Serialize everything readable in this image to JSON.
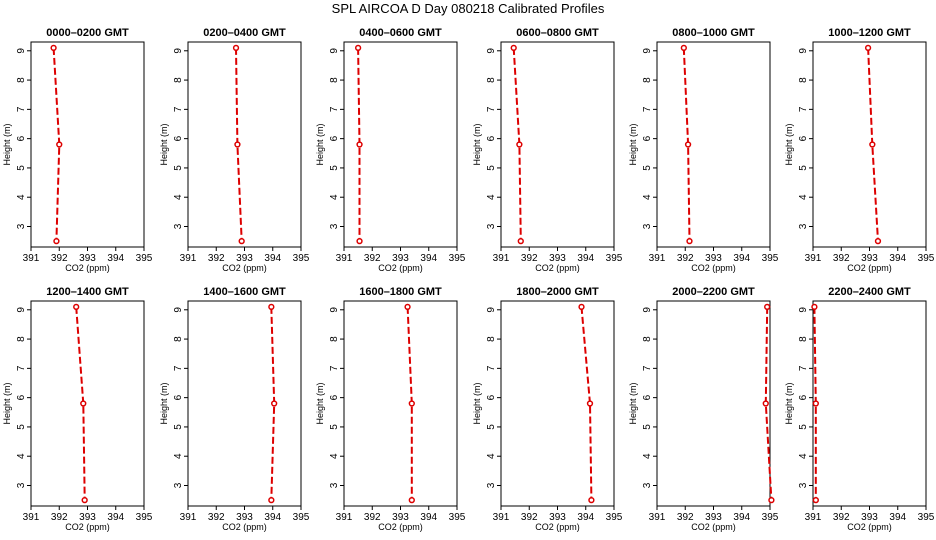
{
  "title": "SPL AIRCOA D  Day 080218  Calibrated Profiles",
  "chart_data": [
    {
      "type": "line",
      "title": "0000–0200 GMT",
      "xlabel": "CO2 (ppm)",
      "ylabel": "Height (m)",
      "xlim": [
        391,
        395
      ],
      "ylim": [
        2.3,
        9.3
      ],
      "x_ticks": [
        "391",
        "392",
        "393",
        "394",
        "395"
      ],
      "y_ticks": [
        "3",
        "4",
        "5",
        "6",
        "7",
        "8",
        "9"
      ],
      "series": [
        {
          "x": [
            391.8,
            392.0,
            391.9
          ],
          "y": [
            9.1,
            5.8,
            2.5
          ]
        }
      ]
    },
    {
      "type": "line",
      "title": "0200–0400 GMT",
      "xlabel": "CO2 (ppm)",
      "ylabel": "Height (m)",
      "xlim": [
        391,
        395
      ],
      "ylim": [
        2.3,
        9.3
      ],
      "x_ticks": [
        "391",
        "392",
        "393",
        "394",
        "395"
      ],
      "y_ticks": [
        "3",
        "4",
        "5",
        "6",
        "7",
        "8",
        "9"
      ],
      "series": [
        {
          "x": [
            392.7,
            392.75,
            392.9
          ],
          "y": [
            9.1,
            5.8,
            2.5
          ]
        }
      ]
    },
    {
      "type": "line",
      "title": "0400–0600 GMT",
      "xlabel": "CO2 (ppm)",
      "ylabel": "Height (m)",
      "xlim": [
        391,
        395
      ],
      "ylim": [
        2.3,
        9.3
      ],
      "x_ticks": [
        "391",
        "392",
        "393",
        "394",
        "395"
      ],
      "y_ticks": [
        "3",
        "4",
        "5",
        "6",
        "7",
        "8",
        "9"
      ],
      "series": [
        {
          "x": [
            391.5,
            391.55,
            391.55
          ],
          "y": [
            9.1,
            5.8,
            2.5
          ]
        }
      ]
    },
    {
      "type": "line",
      "title": "0600–0800 GMT",
      "xlabel": "CO2 (ppm)",
      "ylabel": "Height (m)",
      "xlim": [
        391,
        395
      ],
      "ylim": [
        2.3,
        9.3
      ],
      "x_ticks": [
        "391",
        "392",
        "393",
        "394",
        "395"
      ],
      "y_ticks": [
        "3",
        "4",
        "5",
        "6",
        "7",
        "8",
        "9"
      ],
      "series": [
        {
          "x": [
            391.45,
            391.65,
            391.7
          ],
          "y": [
            9.1,
            5.8,
            2.5
          ]
        }
      ]
    },
    {
      "type": "line",
      "title": "0800–1000 GMT",
      "xlabel": "CO2 (ppm)",
      "ylabel": "Height (m)",
      "xlim": [
        391,
        395
      ],
      "ylim": [
        2.3,
        9.3
      ],
      "x_ticks": [
        "391",
        "392",
        "393",
        "394",
        "395"
      ],
      "y_ticks": [
        "3",
        "4",
        "5",
        "6",
        "7",
        "8",
        "9"
      ],
      "series": [
        {
          "x": [
            391.95,
            392.1,
            392.15
          ],
          "y": [
            9.1,
            5.8,
            2.5
          ]
        }
      ]
    },
    {
      "type": "line",
      "title": "1000–1200 GMT",
      "xlabel": "CO2 (ppm)",
      "ylabel": "Height (m)",
      "xlim": [
        391,
        395
      ],
      "ylim": [
        2.3,
        9.3
      ],
      "x_ticks": [
        "391",
        "392",
        "393",
        "394",
        "395"
      ],
      "y_ticks": [
        "3",
        "4",
        "5",
        "6",
        "7",
        "8",
        "9"
      ],
      "series": [
        {
          "x": [
            392.95,
            393.1,
            393.3
          ],
          "y": [
            9.1,
            5.8,
            2.5
          ]
        }
      ]
    },
    {
      "type": "line",
      "title": "1200–1400 GMT",
      "xlabel": "CO2 (ppm)",
      "ylabel": "Height (m)",
      "xlim": [
        391,
        395
      ],
      "ylim": [
        2.3,
        9.3
      ],
      "x_ticks": [
        "391",
        "392",
        "393",
        "394",
        "395"
      ],
      "y_ticks": [
        "3",
        "4",
        "5",
        "6",
        "7",
        "8",
        "9"
      ],
      "series": [
        {
          "x": [
            392.6,
            392.85,
            392.9
          ],
          "y": [
            9.1,
            5.8,
            2.5
          ]
        }
      ]
    },
    {
      "type": "line",
      "title": "1400–1600 GMT",
      "xlabel": "CO2 (ppm)",
      "ylabel": "Height (m)",
      "xlim": [
        391,
        395
      ],
      "ylim": [
        2.3,
        9.3
      ],
      "x_ticks": [
        "391",
        "392",
        "393",
        "394",
        "395"
      ],
      "y_ticks": [
        "3",
        "4",
        "5",
        "6",
        "7",
        "8",
        "9"
      ],
      "series": [
        {
          "x": [
            393.95,
            394.05,
            393.95
          ],
          "y": [
            9.1,
            5.8,
            2.5
          ]
        }
      ]
    },
    {
      "type": "line",
      "title": "1600–1800 GMT",
      "xlabel": "CO2 (ppm)",
      "ylabel": "Height (m)",
      "xlim": [
        391,
        395
      ],
      "ylim": [
        2.3,
        9.3
      ],
      "x_ticks": [
        "391",
        "392",
        "393",
        "394",
        "395"
      ],
      "y_ticks": [
        "3",
        "4",
        "5",
        "6",
        "7",
        "8",
        "9"
      ],
      "series": [
        {
          "x": [
            393.25,
            393.4,
            393.4
          ],
          "y": [
            9.1,
            5.8,
            2.5
          ]
        }
      ]
    },
    {
      "type": "line",
      "title": "1800–2000 GMT",
      "xlabel": "CO2 (ppm)",
      "ylabel": "Height (m)",
      "xlim": [
        391,
        395
      ],
      "ylim": [
        2.3,
        9.3
      ],
      "x_ticks": [
        "391",
        "392",
        "393",
        "394",
        "395"
      ],
      "y_ticks": [
        "3",
        "4",
        "5",
        "6",
        "7",
        "8",
        "9"
      ],
      "series": [
        {
          "x": [
            393.85,
            394.15,
            394.2
          ],
          "y": [
            9.1,
            5.8,
            2.5
          ]
        }
      ]
    },
    {
      "type": "line",
      "title": "2000–2200 GMT",
      "xlabel": "CO2 (ppm)",
      "ylabel": "Height (m)",
      "xlim": [
        391,
        395
      ],
      "ylim": [
        2.3,
        9.3
      ],
      "x_ticks": [
        "391",
        "392",
        "393",
        "394",
        "395"
      ],
      "y_ticks": [
        "3",
        "4",
        "5",
        "6",
        "7",
        "8",
        "9"
      ],
      "series": [
        {
          "x": [
            394.9,
            394.85,
            395.05
          ],
          "y": [
            9.1,
            5.8,
            2.5
          ]
        }
      ]
    },
    {
      "type": "line",
      "title": "2200–2400 GMT",
      "xlabel": "CO2 (ppm)",
      "ylabel": "Height (m)",
      "xlim": [
        391,
        395
      ],
      "ylim": [
        2.3,
        9.3
      ],
      "x_ticks": [
        "391",
        "392",
        "393",
        "394",
        "395"
      ],
      "y_ticks": [
        "3",
        "4",
        "5",
        "6",
        "7",
        "8",
        "9"
      ],
      "series": [
        {
          "x": [
            391.05,
            391.1,
            391.1
          ],
          "y": [
            9.1,
            5.8,
            2.5
          ]
        }
      ]
    }
  ],
  "colors": {
    "series": "#dd0000",
    "axis": "#000000",
    "background": "#ffffff"
  }
}
